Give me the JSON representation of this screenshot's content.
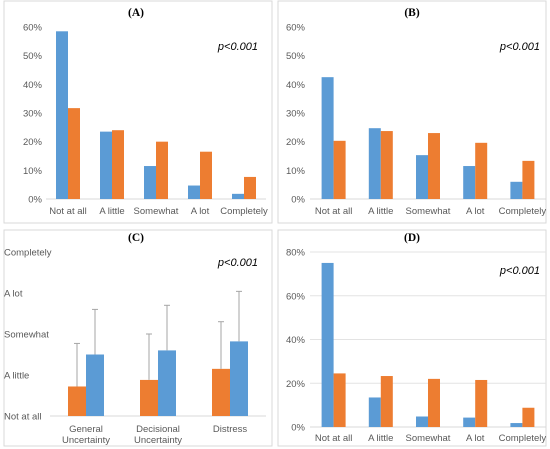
{
  "colors": {
    "series_a": "#5b9bd5",
    "series_b": "#ed7d31"
  },
  "chart_data": [
    {
      "type": "bar",
      "title": "(A)",
      "annotation": "p<0.001",
      "categories": [
        "Not at all",
        "A little",
        "Somewhat",
        "A lot",
        "Completely"
      ],
      "series": [
        {
          "values": [
            58.5,
            23.5,
            11.5,
            4.7,
            1.8
          ]
        },
        {
          "values": [
            31.7,
            24.0,
            20.0,
            16.5,
            7.7
          ]
        }
      ],
      "ylim": [
        0,
        60
      ],
      "yticks": [
        "0%",
        "10%",
        "20%",
        "30%",
        "40%",
        "50%",
        "60%"
      ],
      "grid": false
    },
    {
      "type": "bar",
      "title": "(B)",
      "annotation": "p<0.001",
      "categories": [
        "Not at all",
        "A little",
        "Somewhat",
        "A lot",
        "Completely"
      ],
      "series": [
        {
          "values": [
            42.5,
            24.7,
            15.3,
            11.5,
            6.0
          ]
        },
        {
          "values": [
            20.3,
            23.7,
            23.0,
            19.6,
            13.3
          ]
        }
      ],
      "ylim": [
        0,
        60
      ],
      "yticks": [
        "0%",
        "10%",
        "20%",
        "30%",
        "40%",
        "50%",
        "60%"
      ],
      "grid": false
    },
    {
      "type": "bar",
      "title": "(C)",
      "annotation": "p<0.001",
      "categories": [
        "General\nUncertainty",
        "Decisional\nUncertainty",
        "Distress"
      ],
      "series": [
        {
          "values": [
            1.5,
            1.6,
            1.82
          ],
          "error": [
            1.1,
            1.1,
            1.22
          ]
        },
        {
          "values": [
            0.72,
            0.88,
            1.15
          ],
          "error": [
            1.05,
            1.12,
            1.15
          ]
        }
      ],
      "ylim": [
        0,
        4
      ],
      "yticks": [
        "Not at all",
        "A little",
        "Somewhat",
        "A lot",
        "Completely"
      ],
      "grid": false
    },
    {
      "type": "bar",
      "title": "(D)",
      "annotation": "p<0.001",
      "categories": [
        "Not at all",
        "A little",
        "Somewhat",
        "A lot",
        "Completely"
      ],
      "series": [
        {
          "values": [
            75.0,
            13.5,
            4.8,
            4.3,
            1.8
          ]
        },
        {
          "values": [
            24.5,
            23.3,
            22.0,
            21.5,
            8.8
          ]
        }
      ],
      "ylim": [
        0,
        80
      ],
      "yticks": [
        "0%",
        "20%",
        "40%",
        "60%",
        "80%"
      ],
      "grid": true
    }
  ]
}
